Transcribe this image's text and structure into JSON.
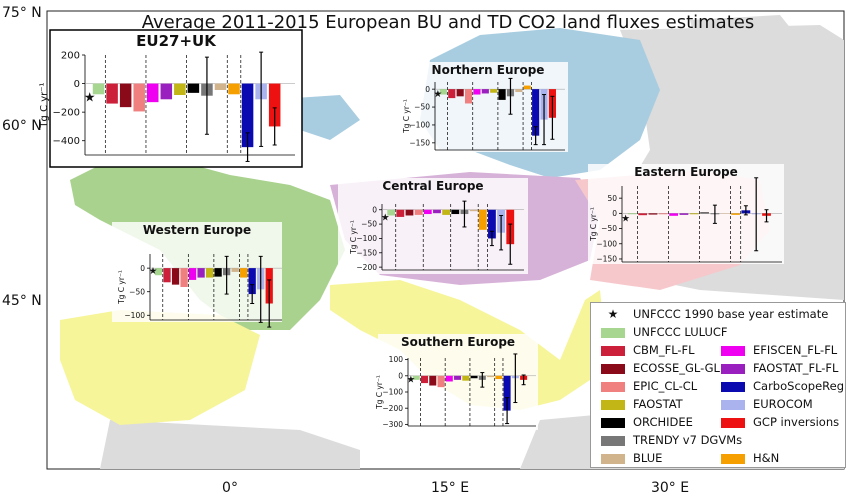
{
  "title": "Average 2011-2015 European BU and TD CO2 land fluxes estimates",
  "lat_labels": [
    "75° N",
    "60° N",
    "45° N"
  ],
  "lon_labels": [
    "0°",
    "15° E",
    "30° E"
  ],
  "region_colors": {
    "northern": "#a9cde0",
    "central": "#d7b2d8",
    "eastern": "#f6c8cc",
    "western": "#a9d28e",
    "southern": "#f6f59a",
    "other": "#dcdcdc"
  },
  "legend": {
    "items": [
      {
        "label": "UNFCCC 1990 base year estimate",
        "marker": "star",
        "color": "#000000"
      },
      {
        "label": "UNFCCC LULUCF",
        "color": "#a6d690"
      },
      {
        "label": "CBM_FL-FL",
        "color": "#cc1f3a"
      },
      {
        "label": "EFISCEN_FL-FL",
        "color": "#f000f0"
      },
      {
        "label": "ECOSSE_GL-GL",
        "color": "#8b0a1a"
      },
      {
        "label": "FAOSTAT_FL-FL",
        "color": "#9a1fbf"
      },
      {
        "label": "EPIC_CL-CL",
        "color": "#f08080"
      },
      {
        "label": "CarboScopeReg",
        "color": "#0a0ab0"
      },
      {
        "label": "FAOSTAT",
        "color": "#c2b516"
      },
      {
        "label": "EUROCOM",
        "color": "#aab3ee"
      },
      {
        "label": "ORCHIDEE",
        "color": "#000000"
      },
      {
        "label": "GCP inversions",
        "color": "#ee1111"
      },
      {
        "label": "TRENDY v7 DGVMs",
        "color": "#777777"
      },
      {
        "label": "BLUE",
        "color": "#d2b48c"
      },
      {
        "label": "H&N",
        "color": "#f5a000"
      }
    ]
  },
  "chart_data": [
    {
      "type": "bar",
      "title": "EU27+UK",
      "ylabel": "Tg C yr⁻¹",
      "ylim": [
        -500,
        200
      ],
      "yticks": [
        200,
        0,
        -200,
        -400
      ],
      "categories": [
        "UNFCCC LULUCF",
        "CBM_FL-FL",
        "ECOSSE_GL-GL",
        "EPIC_CL-CL",
        "EFISCEN_FL-FL",
        "FAOSTAT_FL-FL",
        "FAOSTAT",
        "ORCHIDEE",
        "TRENDY v7 DGVMs",
        "BLUE",
        "H&N",
        "CarboScopeReg",
        "EUROCOM",
        "GCP inversions"
      ],
      "values": [
        -75,
        -140,
        -165,
        -195,
        -130,
        -110,
        -80,
        -65,
        -85,
        -45,
        -75,
        -445,
        -110,
        -300
      ],
      "errors": [
        0,
        0,
        0,
        0,
        0,
        0,
        0,
        0,
        270,
        0,
        0,
        100,
        330,
        130
      ],
      "unfccc_1990": -95
    },
    {
      "type": "bar",
      "title": "Northern Europe",
      "ylabel": "Tg C yr⁻¹",
      "ylim": [
        -170,
        20
      ],
      "yticks": [
        0,
        -50,
        -100,
        -150
      ],
      "categories": [
        "UNFCCC LULUCF",
        "CBM_FL-FL",
        "ECOSSE_GL-GL",
        "EPIC_CL-CL",
        "EFISCEN_FL-FL",
        "FAOSTAT_FL-FL",
        "FAOSTAT",
        "ORCHIDEE",
        "TRENDY v7 DGVMs",
        "BLUE",
        "H&N",
        "CarboScopeReg",
        "EUROCOM",
        "GCP inversions"
      ],
      "values": [
        -15,
        -25,
        -20,
        -40,
        -15,
        -12,
        -10,
        -30,
        -20,
        -8,
        10,
        -130,
        -85,
        -80
      ],
      "errors": [
        0,
        0,
        0,
        0,
        0,
        0,
        0,
        0,
        50,
        0,
        0,
        25,
        70,
        60
      ],
      "unfccc_1990": -12
    },
    {
      "type": "bar",
      "title": "Central Europe",
      "ylabel": "Tg C yr⁻¹",
      "ylim": [
        -210,
        20
      ],
      "yticks": [
        0,
        -50,
        -100,
        -150,
        -200
      ],
      "categories": [
        "UNFCCC LULUCF",
        "CBM_FL-FL",
        "ECOSSE_GL-GL",
        "EPIC_CL-CL",
        "EFISCEN_FL-FL",
        "FAOSTAT_FL-FL",
        "FAOSTAT",
        "ORCHIDEE",
        "TRENDY v7 DGVMs",
        "BLUE",
        "H&N",
        "CarboScopeReg",
        "EUROCOM",
        "GCP inversions"
      ],
      "values": [
        -20,
        -25,
        -20,
        -18,
        -15,
        -12,
        -18,
        -15,
        -15,
        -5,
        -70,
        -100,
        -80,
        -120
      ],
      "errors": [
        0,
        0,
        0,
        0,
        0,
        0,
        0,
        0,
        45,
        0,
        0,
        25,
        60,
        70
      ],
      "unfccc_1990": -25
    },
    {
      "type": "bar",
      "title": "Eastern Europe",
      "ylabel": "Tg C yr⁻¹",
      "ylim": [
        -160,
        90
      ],
      "yticks": [
        50,
        0,
        -50,
        -100,
        -150
      ],
      "categories": [
        "UNFCCC LULUCF",
        "CBM_FL-FL",
        "ECOSSE_GL-GL",
        "EPIC_CL-CL",
        "EFISCEN_FL-FL",
        "FAOSTAT_FL-FL",
        "FAOSTAT",
        "ORCHIDEE",
        "TRENDY v7 DGVMs",
        "BLUE",
        "H&N",
        "CarboScopeReg",
        "EUROCOM",
        "GCP inversions"
      ],
      "values": [
        -3,
        -6,
        -4,
        -3,
        -8,
        -5,
        -3,
        3,
        -3,
        1,
        -5,
        10,
        -3,
        -8
      ],
      "errors": [
        0,
        0,
        0,
        0,
        0,
        0,
        0,
        0,
        30,
        0,
        0,
        15,
        120,
        20
      ],
      "unfccc_1990": -15
    },
    {
      "type": "bar",
      "title": "Western Europe",
      "ylabel": "Tg C yr⁻¹",
      "ylim": [
        -110,
        30
      ],
      "yticks": [
        0,
        -50,
        -100
      ],
      "categories": [
        "UNFCCC LULUCF",
        "CBM_FL-FL",
        "ECOSSE_GL-GL",
        "EPIC_CL-CL",
        "EFISCEN_FL-FL",
        "FAOSTAT_FL-FL",
        "FAOSTAT",
        "ORCHIDEE",
        "TRENDY v7 DGVMs",
        "BLUE",
        "H&N",
        "CarboScopeReg",
        "EUROCOM",
        "GCP inversions"
      ],
      "values": [
        -15,
        -30,
        -35,
        -40,
        -25,
        -20,
        -20,
        -18,
        -15,
        -8,
        -20,
        -55,
        -45,
        -75
      ],
      "errors": [
        0,
        0,
        0,
        0,
        0,
        0,
        0,
        0,
        40,
        0,
        0,
        20,
        70,
        50
      ],
      "unfccc_1990": -5
    },
    {
      "type": "bar",
      "title": "Southern Europe",
      "ylabel": "Tg C yr⁻¹",
      "ylim": [
        -310,
        110
      ],
      "yticks": [
        100,
        0,
        -100,
        -200,
        -300
      ],
      "categories": [
        "UNFCCC LULUCF",
        "CBM_FL-FL",
        "ECOSSE_GL-GL",
        "EPIC_CL-CL",
        "EFISCEN_FL-FL",
        "FAOSTAT_FL-FL",
        "FAOSTAT",
        "ORCHIDEE",
        "TRENDY v7 DGVMs",
        "BLUE",
        "H&N",
        "CarboScopeReg",
        "EUROCOM",
        "GCP inversions"
      ],
      "values": [
        -25,
        -45,
        -60,
        -70,
        -35,
        -25,
        -30,
        -15,
        -25,
        -8,
        -20,
        -215,
        -15,
        -25
      ],
      "errors": [
        0,
        0,
        0,
        0,
        0,
        0,
        0,
        0,
        45,
        0,
        0,
        80,
        150,
        30
      ],
      "unfccc_1990": -20
    }
  ]
}
